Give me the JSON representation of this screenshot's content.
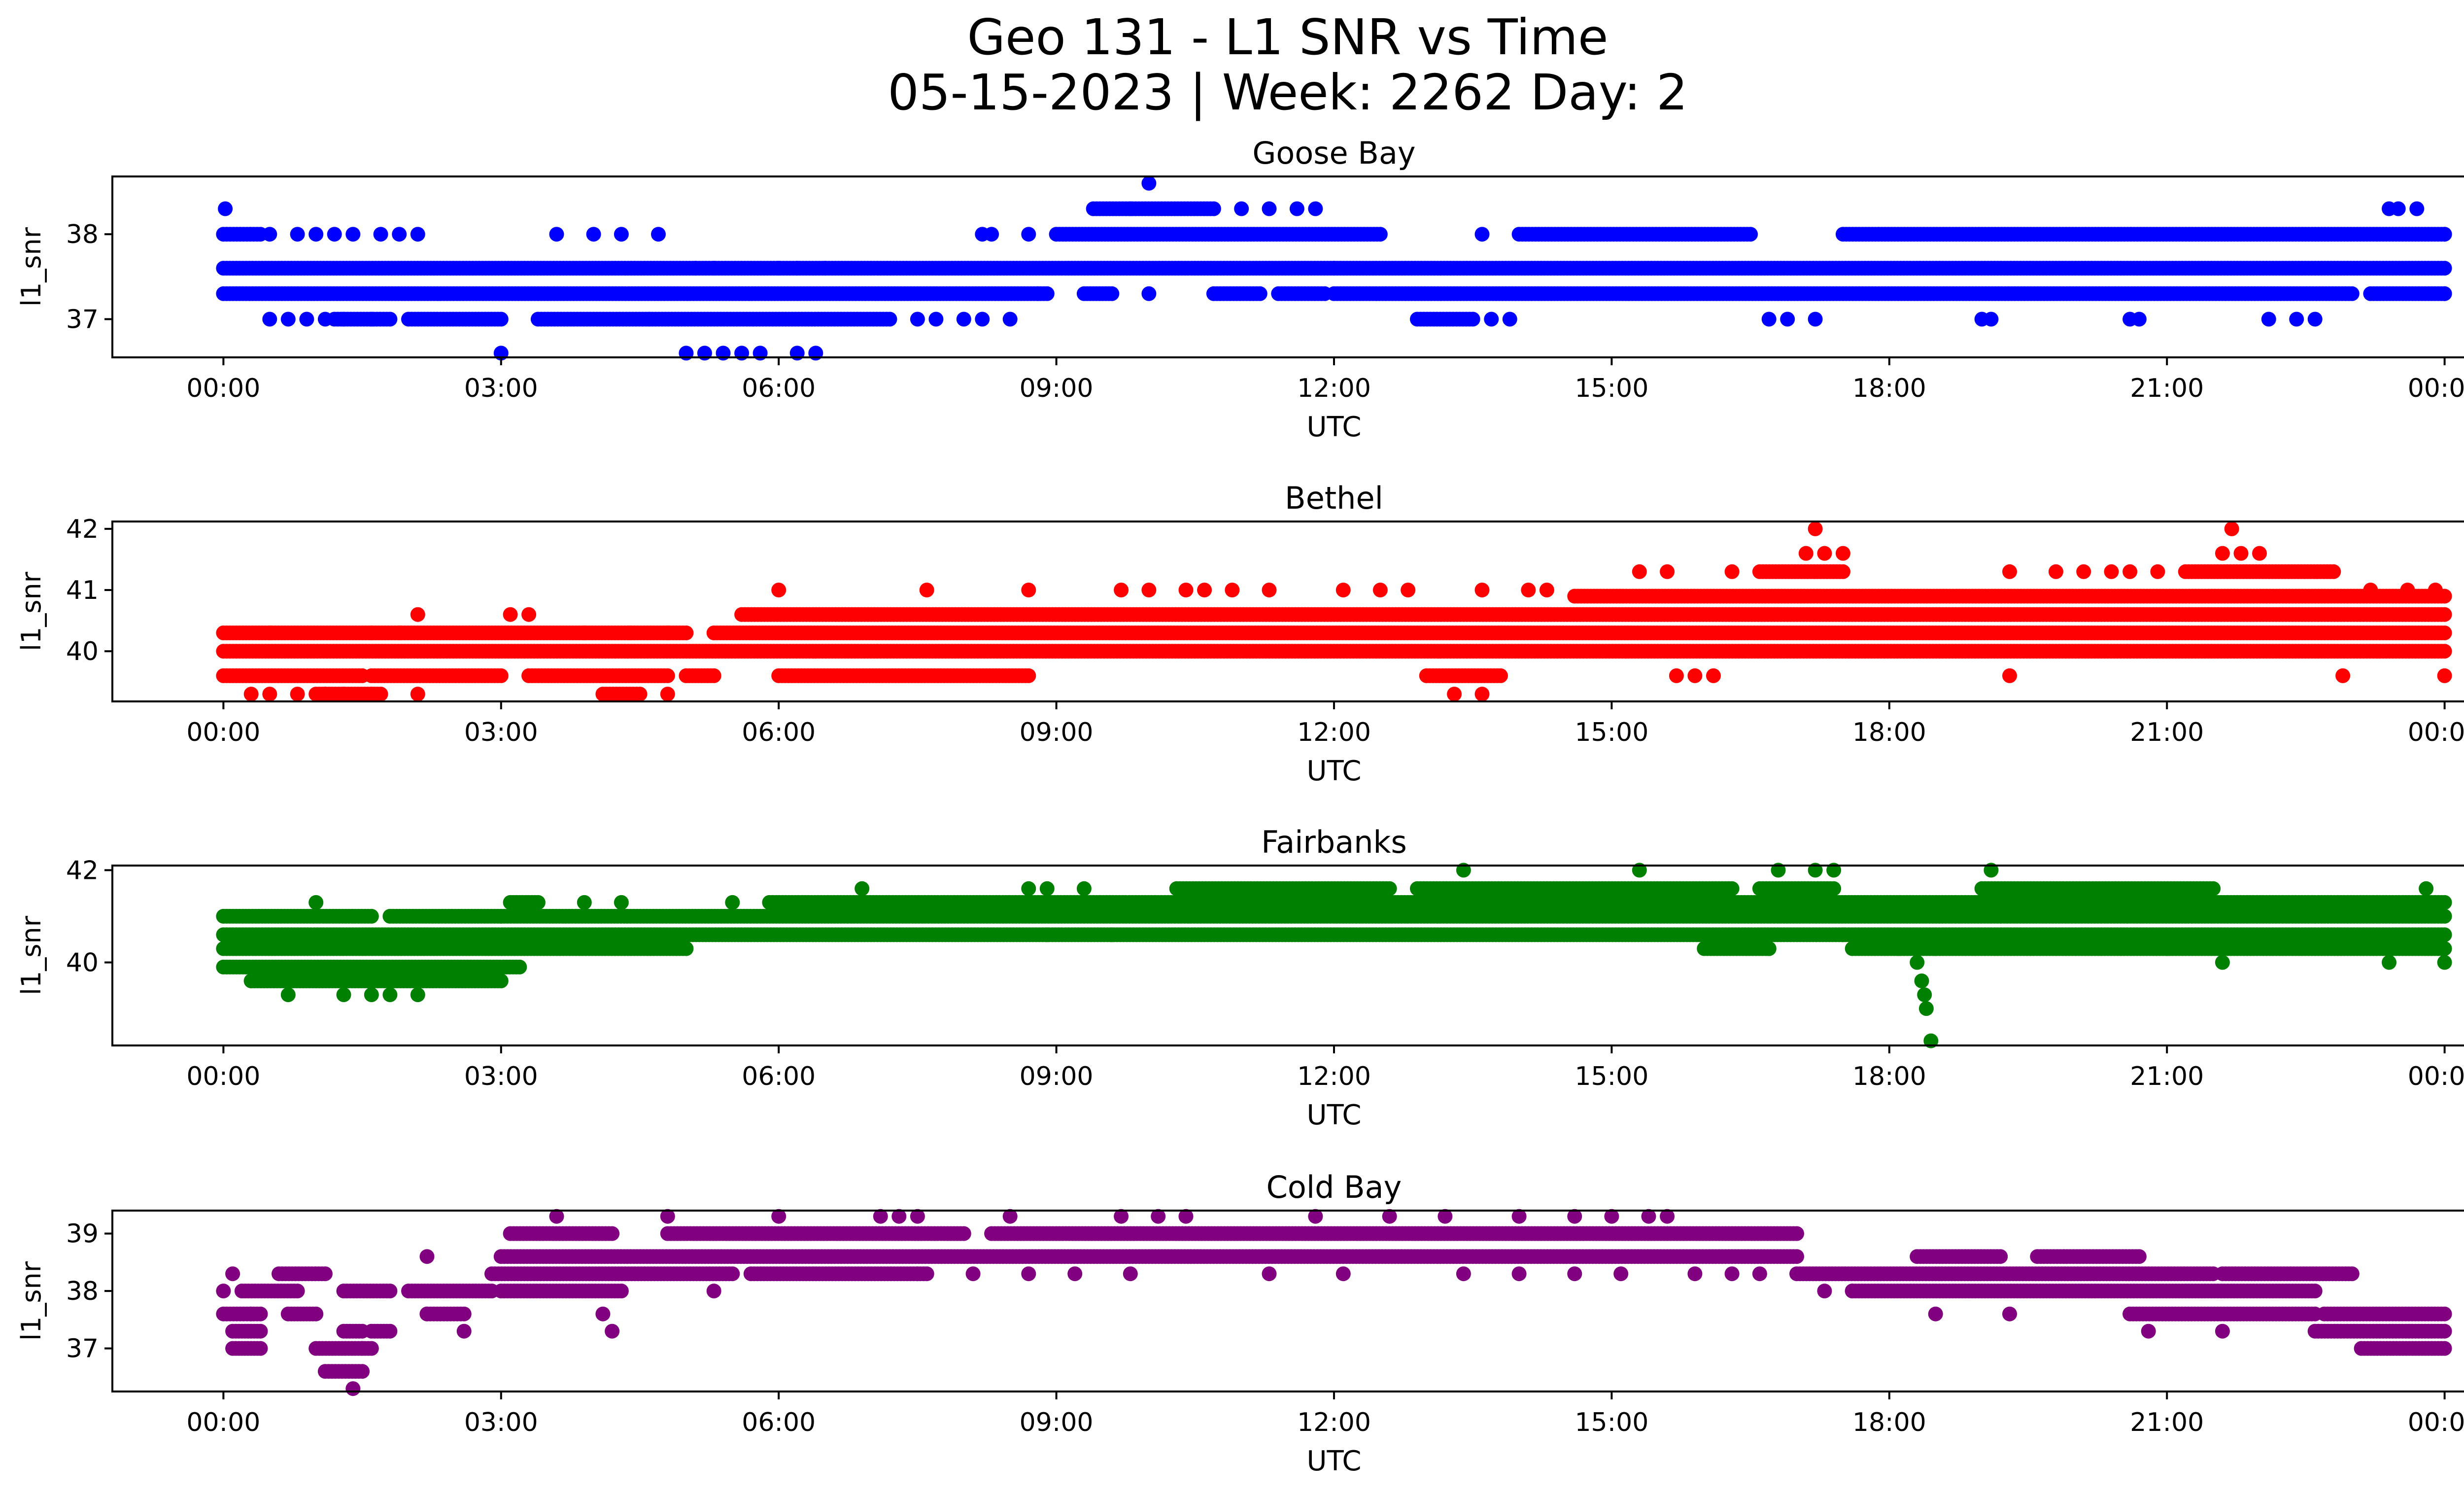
{
  "figure": {
    "title_line1": "Geo 131 - L1 SNR vs Time",
    "title_line2": "05-15-2023 | Week: 2262 Day: 2"
  },
  "x_axis": {
    "label": "UTC",
    "tick_labels": [
      "00:00",
      "03:00",
      "06:00",
      "09:00",
      "12:00",
      "15:00",
      "18:00",
      "21:00",
      "00:00"
    ],
    "tick_hours": [
      0,
      3,
      6,
      9,
      12,
      15,
      18,
      21,
      24
    ],
    "range_hours": [
      -1.2,
      25.2
    ]
  },
  "chart_data": [
    {
      "type": "scatter",
      "title": "Goose Bay",
      "ylabel": "l1_snr",
      "color": "#0000ff",
      "ylim": [
        36.55,
        38.68
      ],
      "yticks": [
        37,
        38
      ],
      "quantum": 0.3,
      "levels": [
        {
          "y": 37.6,
          "segments": [
            [
              0,
              24
            ]
          ]
        },
        {
          "y": 37.3,
          "segments": [
            [
              0,
              8.9
            ],
            [
              9.3,
              9.6
            ],
            [
              10.7,
              11.2
            ],
            [
              11.4,
              11.9
            ],
            [
              12,
              23
            ],
            [
              23.2,
              24
            ]
          ]
        },
        {
          "y": 38.0,
          "segments": [
            [
              0,
              0.4
            ],
            [
              9,
              12.5
            ],
            [
              14,
              16.5
            ],
            [
              17.5,
              24
            ]
          ]
        },
        {
          "y": 38.3,
          "segments": [
            [
              9.4,
              10.7
            ]
          ]
        },
        {
          "y": 37.0,
          "segments": [
            [
              1.2,
              1.8
            ],
            [
              2,
              3
            ],
            [
              3.4,
              4.6
            ],
            [
              4.6,
              7.2
            ],
            [
              12.9,
              13.5
            ]
          ]
        }
      ],
      "points": [
        [
          0.02,
          38.3
        ],
        [
          0.5,
          38
        ],
        [
          0.8,
          38
        ],
        [
          1.0,
          38
        ],
        [
          1.2,
          38
        ],
        [
          1.4,
          38
        ],
        [
          1.7,
          38
        ],
        [
          1.9,
          38
        ],
        [
          2.1,
          38
        ],
        [
          3.6,
          38
        ],
        [
          4.0,
          38
        ],
        [
          4.3,
          38
        ],
        [
          4.7,
          38
        ],
        [
          8.2,
          38
        ],
        [
          8.3,
          38
        ],
        [
          8.7,
          38
        ],
        [
          9.8,
          38.3
        ],
        [
          10,
          38.6
        ],
        [
          11.0,
          38.3
        ],
        [
          11.3,
          38.3
        ],
        [
          11.6,
          38.3
        ],
        [
          11.8,
          38.3
        ],
        [
          23.4,
          38.3
        ],
        [
          23.5,
          38.3
        ],
        [
          23.7,
          38.3
        ],
        [
          0.5,
          37
        ],
        [
          0.7,
          37
        ],
        [
          0.9,
          37
        ],
        [
          1.1,
          37
        ],
        [
          1.3,
          37
        ],
        [
          1.6,
          37
        ],
        [
          7.5,
          37
        ],
        [
          7.7,
          37
        ],
        [
          8.0,
          37
        ],
        [
          8.2,
          37
        ],
        [
          8.5,
          37
        ],
        [
          13.7,
          37
        ],
        [
          13.9,
          37
        ],
        [
          16.7,
          37
        ],
        [
          16.9,
          37
        ],
        [
          17.2,
          37
        ],
        [
          19,
          37
        ],
        [
          19.1,
          37
        ],
        [
          20.6,
          37
        ],
        [
          20.7,
          37
        ],
        [
          22.1,
          37
        ],
        [
          22.4,
          37
        ],
        [
          22.6,
          37
        ],
        [
          3.0,
          36.6
        ],
        [
          5.0,
          36.6
        ],
        [
          5.2,
          36.6
        ],
        [
          5.4,
          36.6
        ],
        [
          5.6,
          36.6
        ],
        [
          5.8,
          36.6
        ],
        [
          6.2,
          36.6
        ],
        [
          6.4,
          36.6
        ],
        [
          13.6,
          38
        ],
        [
          6.0,
          37.6
        ],
        [
          6.2,
          37.6
        ],
        [
          6.5,
          37.6
        ],
        [
          5.3,
          37.6
        ],
        [
          5.1,
          37.6
        ],
        [
          10,
          37.3
        ],
        [
          8.8,
          37.3
        ],
        [
          12,
          37.6
        ],
        [
          24,
          37.3
        ],
        [
          24,
          38
        ]
      ]
    },
    {
      "type": "scatter",
      "title": "Bethel",
      "ylabel": "l1_snr",
      "color": "#ff0000",
      "ylim": [
        39.18,
        42.12
      ],
      "yticks": [
        40,
        41,
        42
      ],
      "quantum": 0.33,
      "levels": [
        {
          "y": 39.6,
          "segments": [
            [
              0,
              1.5
            ],
            [
              1.6,
              3
            ],
            [
              3.3,
              4.8
            ],
            [
              5,
              5.3
            ],
            [
              6,
              8.7
            ],
            [
              13,
              13.8
            ]
          ]
        },
        {
          "y": 40.0,
          "segments": [
            [
              0,
              24
            ]
          ]
        },
        {
          "y": 40.3,
          "segments": [
            [
              0,
              5
            ],
            [
              5.3,
              24
            ]
          ]
        },
        {
          "y": 40.6,
          "segments": [
            [
              5.6,
              24
            ]
          ]
        },
        {
          "y": 40.9,
          "segments": [
            [
              14.6,
              24
            ]
          ]
        },
        {
          "y": 41.3,
          "segments": [
            [
              16.6,
              17.5
            ],
            [
              21.2,
              22.8
            ]
          ]
        },
        {
          "y": 39.3,
          "segments": [
            [
              1,
              1.7
            ],
            [
              4.1,
              4.5
            ]
          ]
        }
      ],
      "points": [
        [
          0.3,
          39.3
        ],
        [
          0.5,
          39.3
        ],
        [
          0.8,
          39.3
        ],
        [
          1.1,
          39.3
        ],
        [
          1.3,
          39.3
        ],
        [
          1.6,
          39.3
        ],
        [
          2.1,
          39.3
        ],
        [
          4.8,
          39.3
        ],
        [
          13.3,
          39.3
        ],
        [
          13.6,
          39.3
        ],
        [
          19.3,
          39.6
        ],
        [
          22.9,
          39.6
        ],
        [
          24,
          39.6
        ],
        [
          15.7,
          39.6
        ],
        [
          15.9,
          39.6
        ],
        [
          16.1,
          39.6
        ],
        [
          6,
          41
        ],
        [
          7.6,
          41
        ],
        [
          8.7,
          41
        ],
        [
          9.7,
          41
        ],
        [
          10,
          41
        ],
        [
          10.4,
          41
        ],
        [
          10.6,
          41
        ],
        [
          10.9,
          41
        ],
        [
          11.3,
          41
        ],
        [
          12.1,
          41
        ],
        [
          12.5,
          41
        ],
        [
          12.8,
          41
        ],
        [
          13.6,
          41
        ],
        [
          14.1,
          41
        ],
        [
          14.3,
          41
        ],
        [
          15.3,
          41.3
        ],
        [
          15.6,
          41.3
        ],
        [
          16.3,
          41.3
        ],
        [
          19.3,
          41.3
        ],
        [
          19.8,
          41.3
        ],
        [
          20.1,
          41.3
        ],
        [
          20.4,
          41.3
        ],
        [
          20.6,
          41.3
        ],
        [
          20.9,
          41.3
        ],
        [
          17.1,
          41.6
        ],
        [
          17.3,
          41.6
        ],
        [
          17.5,
          41.6
        ],
        [
          17.2,
          42
        ],
        [
          21.6,
          41.6
        ],
        [
          21.8,
          41.6
        ],
        [
          22.0,
          41.6
        ],
        [
          21.7,
          42
        ],
        [
          2.1,
          40.6
        ],
        [
          3.1,
          40.6
        ],
        [
          3.3,
          40.6
        ],
        [
          0.5,
          40.3
        ],
        [
          1.6,
          40.3
        ],
        [
          1.9,
          40.3
        ],
        [
          3.9,
          40.3
        ],
        [
          4.4,
          40.3
        ],
        [
          4.8,
          40.3
        ],
        [
          23.2,
          41
        ],
        [
          23.6,
          41
        ],
        [
          23.9,
          41
        ]
      ]
    },
    {
      "type": "scatter",
      "title": "Fairbanks",
      "ylabel": "l1_snr",
      "color": "#008000",
      "ylim": [
        38.2,
        42.1
      ],
      "yticks": [
        40,
        42
      ],
      "quantum": 0.33,
      "levels": [
        {
          "y": 39.6,
          "segments": [
            [
              0.3,
              3
            ]
          ]
        },
        {
          "y": 39.9,
          "segments": [
            [
              0,
              3.2
            ]
          ]
        },
        {
          "y": 40.3,
          "segments": [
            [
              0,
              5
            ],
            [
              16,
              16.7
            ],
            [
              17.6,
              24
            ]
          ]
        },
        {
          "y": 40.6,
          "segments": [
            [
              0,
              24
            ]
          ]
        },
        {
          "y": 41.0,
          "segments": [
            [
              0,
              1.6
            ],
            [
              1.8,
              3
            ],
            [
              3,
              24
            ]
          ]
        },
        {
          "y": 41.3,
          "segments": [
            [
              3.1,
              3.4
            ],
            [
              5.9,
              24
            ]
          ]
        },
        {
          "y": 41.6,
          "segments": [
            [
              10.3,
              12.6
            ],
            [
              12.9,
              16.3
            ],
            [
              16.6,
              17.4
            ],
            [
              19,
              21.5
            ]
          ]
        }
      ],
      "points": [
        [
          0.3,
          39.6
        ],
        [
          0.7,
          39.3
        ],
        [
          1.3,
          39.3
        ],
        [
          1.6,
          39.3
        ],
        [
          1.8,
          39.3
        ],
        [
          2.1,
          39.3
        ],
        [
          1,
          41.3
        ],
        [
          3.9,
          41.3
        ],
        [
          4.3,
          41.3
        ],
        [
          5.5,
          41.3
        ],
        [
          6.9,
          41.6
        ],
        [
          8.7,
          41.6
        ],
        [
          8.9,
          41.6
        ],
        [
          9.3,
          41.6
        ],
        [
          13.4,
          42
        ],
        [
          15.3,
          42
        ],
        [
          16.8,
          42
        ],
        [
          17.2,
          42
        ],
        [
          17.4,
          42
        ],
        [
          19.1,
          42
        ],
        [
          18.3,
          40.0
        ],
        [
          18.35,
          39.6
        ],
        [
          18.38,
          39.3
        ],
        [
          18.4,
          39.0
        ],
        [
          18.45,
          38.3
        ],
        [
          18.1,
          40.3
        ],
        [
          18.5,
          40.3
        ],
        [
          21.6,
          40
        ],
        [
          23.4,
          40
        ],
        [
          24,
          40
        ],
        [
          21,
          40.3
        ],
        [
          23.8,
          41.6
        ],
        [
          16.7,
          40.3
        ],
        [
          17.5,
          40.6
        ],
        [
          8.9,
          40.6
        ],
        [
          9.6,
          40.6
        ]
      ]
    },
    {
      "type": "scatter",
      "title": "Cold Bay",
      "ylabel": "l1_snr",
      "color": "#800080",
      "ylim": [
        36.25,
        39.4
      ],
      "yticks": [
        37,
        38,
        39
      ],
      "quantum": 0.33,
      "levels": [
        {
          "y": 37.6,
          "segments": [
            [
              0,
              0.4
            ],
            [
              0.7,
              1
            ],
            [
              2.2,
              2.6
            ],
            [
              20.6,
              22.6
            ],
            [
              22.7,
              24
            ]
          ]
        },
        {
          "y": 38.0,
          "segments": [
            [
              0.2,
              0.8
            ],
            [
              1.3,
              1.8
            ],
            [
              2,
              2.9
            ],
            [
              3,
              4.3
            ],
            [
              17.6,
              22.6
            ]
          ]
        },
        {
          "y": 38.3,
          "segments": [
            [
              0.6,
              1.1
            ],
            [
              2.9,
              5.5
            ],
            [
              5.7,
              7.6
            ],
            [
              17,
              21.5
            ],
            [
              21.6,
              23
            ]
          ]
        },
        {
          "y": 38.6,
          "segments": [
            [
              3,
              17
            ],
            [
              18.3,
              19.2
            ],
            [
              19.6,
              20.7
            ]
          ]
        },
        {
          "y": 39.0,
          "segments": [
            [
              3.1,
              4.2
            ],
            [
              4.8,
              8
            ],
            [
              8.3,
              17
            ]
          ]
        },
        {
          "y": 37.3,
          "segments": [
            [
              0.1,
              0.4
            ],
            [
              1.3,
              1.5
            ],
            [
              1.6,
              1.8
            ],
            [
              22.6,
              24
            ]
          ]
        },
        {
          "y": 37.0,
          "segments": [
            [
              0.1,
              0.4
            ],
            [
              1,
              1.6
            ],
            [
              23.1,
              24
            ]
          ]
        },
        {
          "y": 36.6,
          "segments": [
            [
              1.1,
              1.5
            ]
          ]
        }
      ],
      "points": [
        [
          0,
          38
        ],
        [
          0.1,
          38.3
        ],
        [
          0.3,
          37.6
        ],
        [
          1.4,
          36.3
        ],
        [
          1.5,
          37
        ],
        [
          2.2,
          38.6
        ],
        [
          2.6,
          37.3
        ],
        [
          2.2,
          37.6
        ],
        [
          3.6,
          39.3
        ],
        [
          4.1,
          37.6
        ],
        [
          4.2,
          37.3
        ],
        [
          4.8,
          39.3
        ],
        [
          5.3,
          38
        ],
        [
          6,
          39.3
        ],
        [
          7.1,
          39.3
        ],
        [
          7.3,
          39.3
        ],
        [
          7.5,
          39.3
        ],
        [
          8.5,
          39.3
        ],
        [
          9.7,
          39.3
        ],
        [
          10.1,
          39.3
        ],
        [
          10.4,
          39.3
        ],
        [
          11.8,
          39.3
        ],
        [
          12.6,
          39.3
        ],
        [
          13.2,
          39.3
        ],
        [
          14.0,
          39.3
        ],
        [
          14.6,
          39.3
        ],
        [
          15.0,
          39.3
        ],
        [
          15.4,
          39.3
        ],
        [
          15.6,
          39.3
        ],
        [
          18.5,
          37.6
        ],
        [
          19.3,
          37.6
        ],
        [
          20.8,
          37.3
        ],
        [
          21.6,
          37.3
        ],
        [
          7.5,
          38.3
        ],
        [
          8.1,
          38.3
        ],
        [
          8.7,
          38.3
        ],
        [
          9.2,
          38.3
        ],
        [
          9.8,
          38.3
        ],
        [
          11.3,
          38.3
        ],
        [
          12.1,
          38.3
        ],
        [
          13.4,
          38.3
        ],
        [
          14.0,
          38.3
        ],
        [
          14.6,
          38.3
        ],
        [
          15.1,
          38.3
        ],
        [
          15.9,
          38.3
        ],
        [
          16.3,
          38.3
        ],
        [
          16.6,
          38.3
        ],
        [
          17.3,
          38
        ],
        [
          17.6,
          38
        ]
      ]
    }
  ]
}
